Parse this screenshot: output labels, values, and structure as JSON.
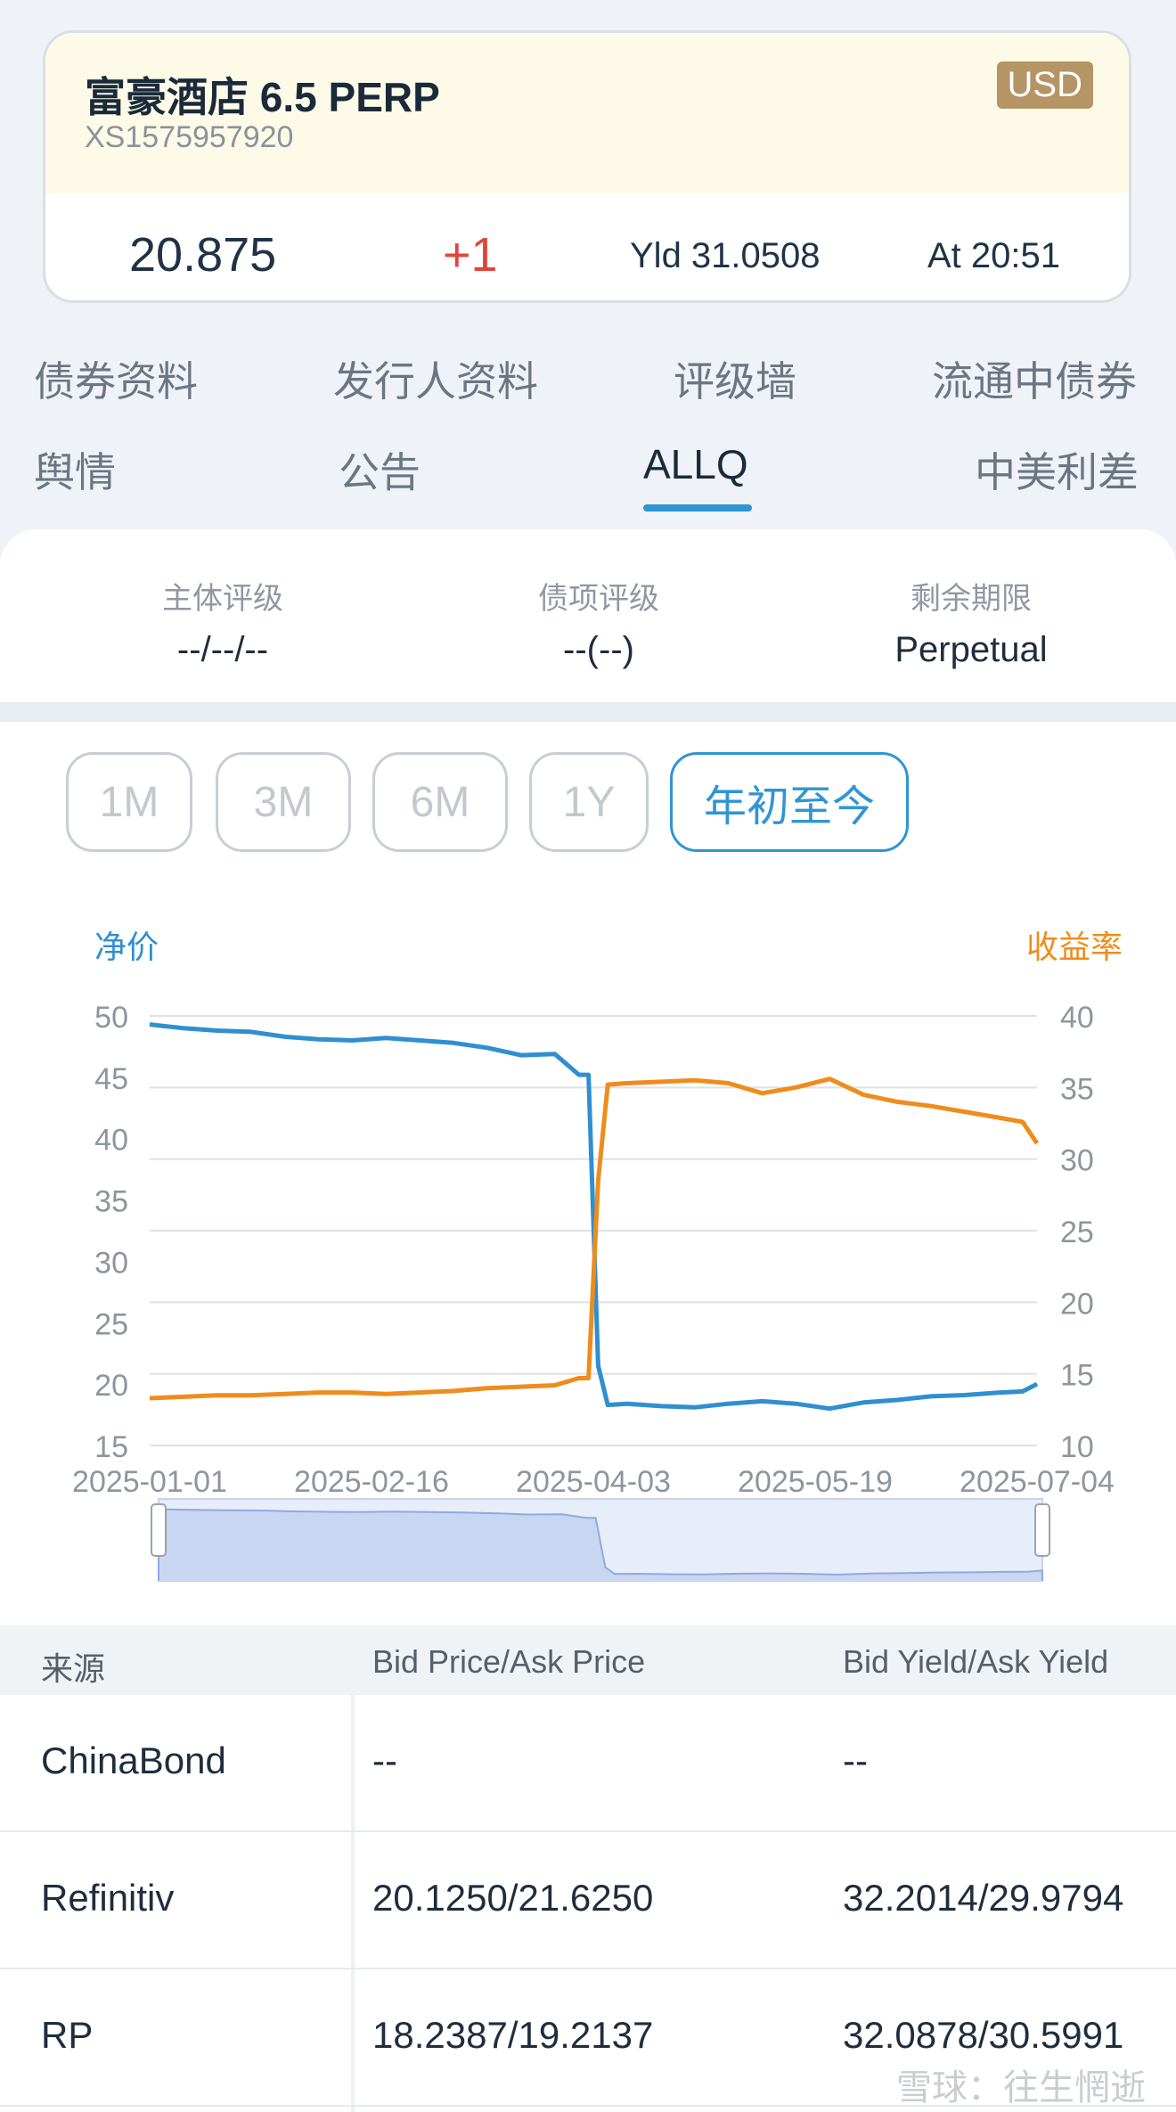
{
  "bond": {
    "name": "富豪酒店 6.5 PERP",
    "isin": "XS1575957920",
    "currency": "USD",
    "price": "20.875",
    "change": "+1",
    "yield": "Yld 31.0508",
    "time": "At 20:51"
  },
  "tabs": {
    "row1": [
      "债券资料",
      "发行人资料",
      "评级墙",
      "流通中债券"
    ],
    "row2": [
      "舆情",
      "公告",
      "ALLQ",
      "中美利差"
    ],
    "active": "ALLQ"
  },
  "ratings": {
    "issuer_label": "主体评级",
    "issuer_value": "--/--/--",
    "issue_label": "债项评级",
    "issue_value": "--(--)",
    "tenor_label": "剩余期限",
    "tenor_value": "Perpetual"
  },
  "ranges": {
    "items": [
      "1M",
      "3M",
      "6M",
      "1Y",
      "年初至今"
    ],
    "active": "年初至今"
  },
  "colors": {
    "price": "#2f8fd0",
    "yield": "#ef8c1c",
    "accent": "#2f95d3"
  },
  "chart_data": {
    "type": "line",
    "left_axis_title": "净价",
    "right_axis_title": "收益率",
    "x_ticks": [
      "2025-01-01",
      "2025-02-16",
      "2025-04-03",
      "2025-05-19",
      "2025-07-04"
    ],
    "x_range": [
      "2025-01-01",
      "2025-07-04"
    ],
    "y_left_ticks": [
      50,
      45,
      40,
      35,
      30,
      25,
      20,
      15
    ],
    "y_left_range": [
      15,
      50
    ],
    "y_right_ticks": [
      40,
      35,
      30,
      25,
      20,
      15,
      10
    ],
    "y_right_range": [
      10,
      40
    ],
    "grid": true,
    "series": [
      {
        "name": "净价",
        "axis": "left",
        "x": [
          "2025-01-01",
          "2025-01-08",
          "2025-01-15",
          "2025-01-22",
          "2025-01-29",
          "2025-02-05",
          "2025-02-12",
          "2025-02-19",
          "2025-02-26",
          "2025-03-05",
          "2025-03-12",
          "2025-03-19",
          "2025-03-26",
          "2025-03-31",
          "2025-04-02",
          "2025-04-04",
          "2025-04-06",
          "2025-04-10",
          "2025-04-17",
          "2025-04-24",
          "2025-05-01",
          "2025-05-08",
          "2025-05-15",
          "2025-05-22",
          "2025-05-29",
          "2025-06-05",
          "2025-06-12",
          "2025-06-19",
          "2025-06-26",
          "2025-07-01",
          "2025-07-04"
        ],
        "values": [
          49.3,
          49.0,
          48.8,
          48.7,
          48.3,
          48.1,
          48.0,
          48.2,
          48.0,
          47.8,
          47.4,
          46.8,
          46.9,
          45.2,
          45.2,
          21.5,
          18.3,
          18.4,
          18.2,
          18.1,
          18.4,
          18.6,
          18.4,
          18.0,
          18.5,
          18.7,
          19.0,
          19.1,
          19.3,
          19.4,
          20.0
        ]
      },
      {
        "name": "收益率",
        "axis": "right",
        "x": [
          "2025-01-01",
          "2025-01-08",
          "2025-01-15",
          "2025-01-22",
          "2025-01-29",
          "2025-02-05",
          "2025-02-12",
          "2025-02-19",
          "2025-02-26",
          "2025-03-05",
          "2025-03-12",
          "2025-03-19",
          "2025-03-26",
          "2025-03-31",
          "2025-04-02",
          "2025-04-04",
          "2025-04-06",
          "2025-04-10",
          "2025-04-17",
          "2025-04-24",
          "2025-05-01",
          "2025-05-08",
          "2025-05-15",
          "2025-05-22",
          "2025-05-29",
          "2025-06-05",
          "2025-06-12",
          "2025-06-19",
          "2025-06-26",
          "2025-07-01",
          "2025-07-04"
        ],
        "values": [
          13.3,
          13.4,
          13.5,
          13.5,
          13.6,
          13.7,
          13.7,
          13.6,
          13.7,
          13.8,
          14.0,
          14.1,
          14.2,
          14.7,
          14.7,
          28.5,
          35.2,
          35.3,
          35.4,
          35.5,
          35.3,
          34.6,
          35.0,
          35.6,
          34.5,
          34.0,
          33.7,
          33.3,
          32.9,
          32.6,
          31.1
        ]
      }
    ]
  },
  "table": {
    "headers": [
      "来源",
      "Bid Price/Ask Price",
      "Bid Yield/Ask Yield"
    ],
    "rows": [
      {
        "source": "ChinaBond",
        "price": "--",
        "yield": "--"
      },
      {
        "source": "Refinitiv",
        "price": "20.1250/21.6250",
        "yield": "32.2014/29.9794"
      },
      {
        "source": "RP",
        "price": "18.2387/19.2137",
        "yield": "32.0878/30.5991"
      }
    ]
  },
  "watermark": "雪球：往生惘逝"
}
